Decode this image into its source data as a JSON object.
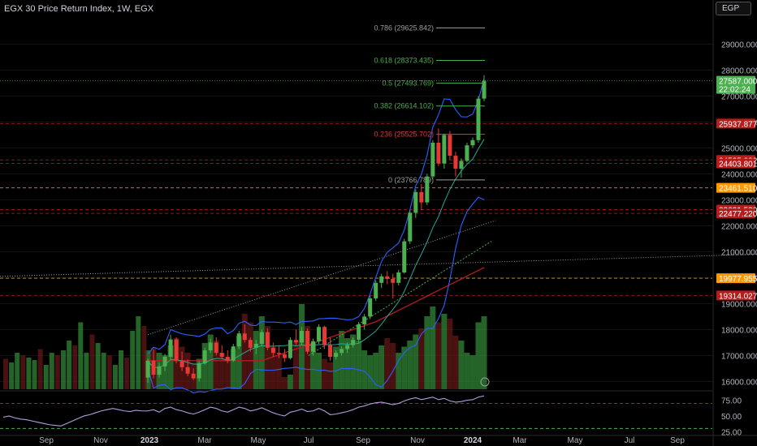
{
  "header": {
    "title": "EGX 30 Price Return Index, 1W, EGX",
    "currency": "EGP"
  },
  "colors": {
    "up": "#4caf50",
    "down": "#e53935",
    "bb": "#2962ff",
    "ma": "#b71c1c",
    "rsi": "#b39ddb",
    "bg": "#000000"
  },
  "chart_data": {
    "type": "candlestick",
    "title": "EGX 30 Price Return Index, 1W, EGX",
    "currency": "EGP",
    "x_ticks": [
      "Sep",
      "Nov",
      "2023",
      "Mar",
      "May",
      "Jul",
      "Sep",
      "Nov",
      "2024",
      "Mar",
      "May",
      "Jul",
      "Sep"
    ],
    "y_ticks": [
      "29000.000",
      "28000.000",
      "27000.000",
      "26000.000",
      "25000.000",
      "24000.000",
      "23000.000",
      "22000.000",
      "21000.000",
      "20000.000",
      "19000.000",
      "18000.000",
      "17000.000",
      "16000.000"
    ],
    "y_range": [
      15700,
      30700
    ],
    "candles": [
      {
        "o": 16150,
        "h": 16880,
        "l": 15950,
        "c": 16800
      },
      {
        "o": 16800,
        "h": 17230,
        "l": 16120,
        "c": 16260
      },
      {
        "o": 16260,
        "h": 16720,
        "l": 16150,
        "c": 16580
      },
      {
        "o": 16580,
        "h": 17060,
        "l": 16400,
        "c": 16950
      },
      {
        "o": 16950,
        "h": 17800,
        "l": 16850,
        "c": 17620
      },
      {
        "o": 17620,
        "h": 17700,
        "l": 16700,
        "c": 16800
      },
      {
        "o": 16800,
        "h": 17150,
        "l": 16400,
        "c": 16550
      },
      {
        "o": 16550,
        "h": 16850,
        "l": 16200,
        "c": 16300
      },
      {
        "o": 16300,
        "h": 16500,
        "l": 16050,
        "c": 16120
      },
      {
        "o": 16120,
        "h": 16780,
        "l": 16000,
        "c": 16700
      },
      {
        "o": 16700,
        "h": 17300,
        "l": 16650,
        "c": 17200
      },
      {
        "o": 17200,
        "h": 17650,
        "l": 17100,
        "c": 17500
      },
      {
        "o": 17500,
        "h": 17700,
        "l": 17000,
        "c": 17100
      },
      {
        "o": 17100,
        "h": 17400,
        "l": 16850,
        "c": 16950
      },
      {
        "o": 16950,
        "h": 17200,
        "l": 16700,
        "c": 16800
      },
      {
        "o": 16800,
        "h": 17450,
        "l": 16750,
        "c": 17350
      },
      {
        "o": 17350,
        "h": 17950,
        "l": 17250,
        "c": 17850
      },
      {
        "o": 17850,
        "h": 18200,
        "l": 17500,
        "c": 17600
      },
      {
        "o": 17600,
        "h": 17700,
        "l": 17150,
        "c": 17300
      },
      {
        "o": 17300,
        "h": 17600,
        "l": 17050,
        "c": 17450
      },
      {
        "o": 17450,
        "h": 18000,
        "l": 17350,
        "c": 17900
      },
      {
        "o": 17900,
        "h": 18050,
        "l": 17200,
        "c": 17300
      },
      {
        "o": 17300,
        "h": 17500,
        "l": 16950,
        "c": 17100
      },
      {
        "o": 17100,
        "h": 17400,
        "l": 16900,
        "c": 17050
      },
      {
        "o": 17050,
        "h": 17250,
        "l": 16750,
        "c": 16900
      },
      {
        "o": 16900,
        "h": 17700,
        "l": 16850,
        "c": 17600
      },
      {
        "o": 17600,
        "h": 18000,
        "l": 17400,
        "c": 17500
      },
      {
        "o": 17500,
        "h": 18100,
        "l": 17400,
        "c": 17950
      },
      {
        "o": 17950,
        "h": 18050,
        "l": 17050,
        "c": 17150
      },
      {
        "o": 17150,
        "h": 17650,
        "l": 17000,
        "c": 17550
      },
      {
        "o": 17550,
        "h": 18200,
        "l": 17450,
        "c": 18100
      },
      {
        "o": 18100,
        "h": 18150,
        "l": 17250,
        "c": 17400
      },
      {
        "o": 17400,
        "h": 17700,
        "l": 16800,
        "c": 16950
      },
      {
        "o": 16950,
        "h": 17200,
        "l": 16850,
        "c": 17100
      },
      {
        "o": 17100,
        "h": 17350,
        "l": 17000,
        "c": 17250
      },
      {
        "o": 17250,
        "h": 17500,
        "l": 17100,
        "c": 17400
      },
      {
        "o": 17400,
        "h": 17700,
        "l": 17300,
        "c": 17600
      },
      {
        "o": 17600,
        "h": 18300,
        "l": 17500,
        "c": 18200
      },
      {
        "o": 18200,
        "h": 18600,
        "l": 18000,
        "c": 18500
      },
      {
        "o": 18500,
        "h": 19300,
        "l": 18400,
        "c": 19200
      },
      {
        "o": 19200,
        "h": 19900,
        "l": 19100,
        "c": 19800
      },
      {
        "o": 19800,
        "h": 20150,
        "l": 19600,
        "c": 20050
      },
      {
        "o": 20050,
        "h": 20250,
        "l": 19750,
        "c": 19950
      },
      {
        "o": 19950,
        "h": 20150,
        "l": 19200,
        "c": 19800
      },
      {
        "o": 19800,
        "h": 20300,
        "l": 19700,
        "c": 20200
      },
      {
        "o": 20200,
        "h": 21500,
        "l": 20150,
        "c": 21400
      },
      {
        "o": 21400,
        "h": 22600,
        "l": 21300,
        "c": 22500
      },
      {
        "o": 22500,
        "h": 23400,
        "l": 22300,
        "c": 23300
      },
      {
        "o": 23300,
        "h": 23600,
        "l": 22600,
        "c": 22900
      },
      {
        "o": 22900,
        "h": 24000,
        "l": 22800,
        "c": 23900
      },
      {
        "o": 23900,
        "h": 25300,
        "l": 23800,
        "c": 25200
      },
      {
        "o": 25200,
        "h": 25750,
        "l": 24300,
        "c": 24400
      },
      {
        "o": 24400,
        "h": 25550,
        "l": 24200,
        "c": 25500
      },
      {
        "o": 25500,
        "h": 25650,
        "l": 24550,
        "c": 24700
      },
      {
        "o": 24700,
        "h": 24850,
        "l": 23900,
        "c": 24200
      },
      {
        "o": 24200,
        "h": 24600,
        "l": 23850,
        "c": 24500
      },
      {
        "o": 24500,
        "h": 25200,
        "l": 24450,
        "c": 25100
      },
      {
        "o": 25100,
        "h": 25400,
        "l": 25000,
        "c": 25300
      },
      {
        "o": 25300,
        "h": 27000,
        "l": 25200,
        "c": 26900
      },
      {
        "o": 26900,
        "h": 27800,
        "l": 26800,
        "c": 27587
      }
    ],
    "volume": [
      0.32,
      0.34,
      0.3,
      0.28,
      0.36,
      0.42,
      0.35,
      0.3,
      0.22,
      0.25,
      0.38,
      0.45,
      0.4,
      0.3,
      0.26,
      0.33,
      0.44,
      0.62,
      0.55,
      0.48,
      0.6,
      0.52,
      0.35,
      0.28,
      0.1,
      0.12,
      0.4,
      0.7,
      0.52,
      0.38,
      0.3,
      0.25,
      0.22,
      0.35,
      0.48,
      0.42,
      0.45,
      0.4,
      0.32,
      0.28,
      0.3,
      0.36,
      0.42,
      0.38,
      0.3,
      0.35,
      0.4,
      0.45,
      0.5,
      0.6,
      0.68,
      0.55,
      0.62,
      0.58,
      0.44,
      0.4,
      0.3,
      0.28,
      0.55,
      0.6
    ],
    "price_labels": [
      {
        "text": "27587.000",
        "sub": "22:02:24",
        "value": 27587,
        "color": "#4caf50",
        "line": "dotted"
      },
      {
        "text": "25937.877",
        "value": 25937.877,
        "color": "#b71c1c",
        "line": "dashed"
      },
      {
        "text": "24535.082",
        "value": 24535.082,
        "color": "#b71c1c",
        "line": "dashed"
      },
      {
        "text": "24403.801",
        "value": 24403.801,
        "color": "#b71c1c",
        "line": "dashed"
      },
      {
        "text": "23461.510",
        "value": 23461.51,
        "color": "#ff9800",
        "line": "dashed"
      },
      {
        "text": "22621.530",
        "value": 22621.53,
        "color": "#b71c1c",
        "line": "dashed"
      },
      {
        "text": "22477.220",
        "value": 22477.22,
        "color": "#b71c1c",
        "line": "dashed"
      },
      {
        "text": "19977.955",
        "value": 19977.955,
        "color": "#ff9800",
        "line": "dashed"
      },
      {
        "text": "19314.027",
        "value": 19314.027,
        "color": "#b71c1c",
        "line": "dashed"
      }
    ],
    "fib_levels": [
      {
        "label": "0.786 (29625.842)",
        "value": 29625.842,
        "color": "#9e9e9e"
      },
      {
        "label": "0.618 (28373.435)",
        "value": 28373.435,
        "color": "#4caf50"
      },
      {
        "label": "0.5 (27493.769)",
        "value": 27493.769,
        "color": "#4caf50"
      },
      {
        "label": "0.382 (26614.102)",
        "value": 26614.102,
        "color": "#4caf50"
      },
      {
        "label": "0.236 (25525.702)",
        "value": 25525.702,
        "color": "#e53935"
      },
      {
        "label": "0 (23766.789)",
        "value": 23766.789,
        "color": "#9e9e9e"
      }
    ],
    "rsi": {
      "ticks": [
        "75.00",
        "50.00",
        "25.00"
      ],
      "levels": [
        70,
        30
      ],
      "values": [
        58,
        60,
        56,
        62,
        64,
        60,
        58,
        55,
        53,
        56,
        60,
        64,
        62,
        58,
        56,
        60,
        64,
        62,
        58,
        60,
        63,
        59,
        55,
        52,
        50,
        56,
        58,
        61,
        57,
        58,
        62,
        58,
        52,
        53,
        55,
        57,
        60,
        64,
        66,
        69,
        71,
        72,
        70,
        68,
        70,
        74,
        77,
        79,
        76,
        78,
        80,
        76,
        78,
        74,
        72,
        73,
        75,
        76,
        80,
        82
      ]
    }
  }
}
